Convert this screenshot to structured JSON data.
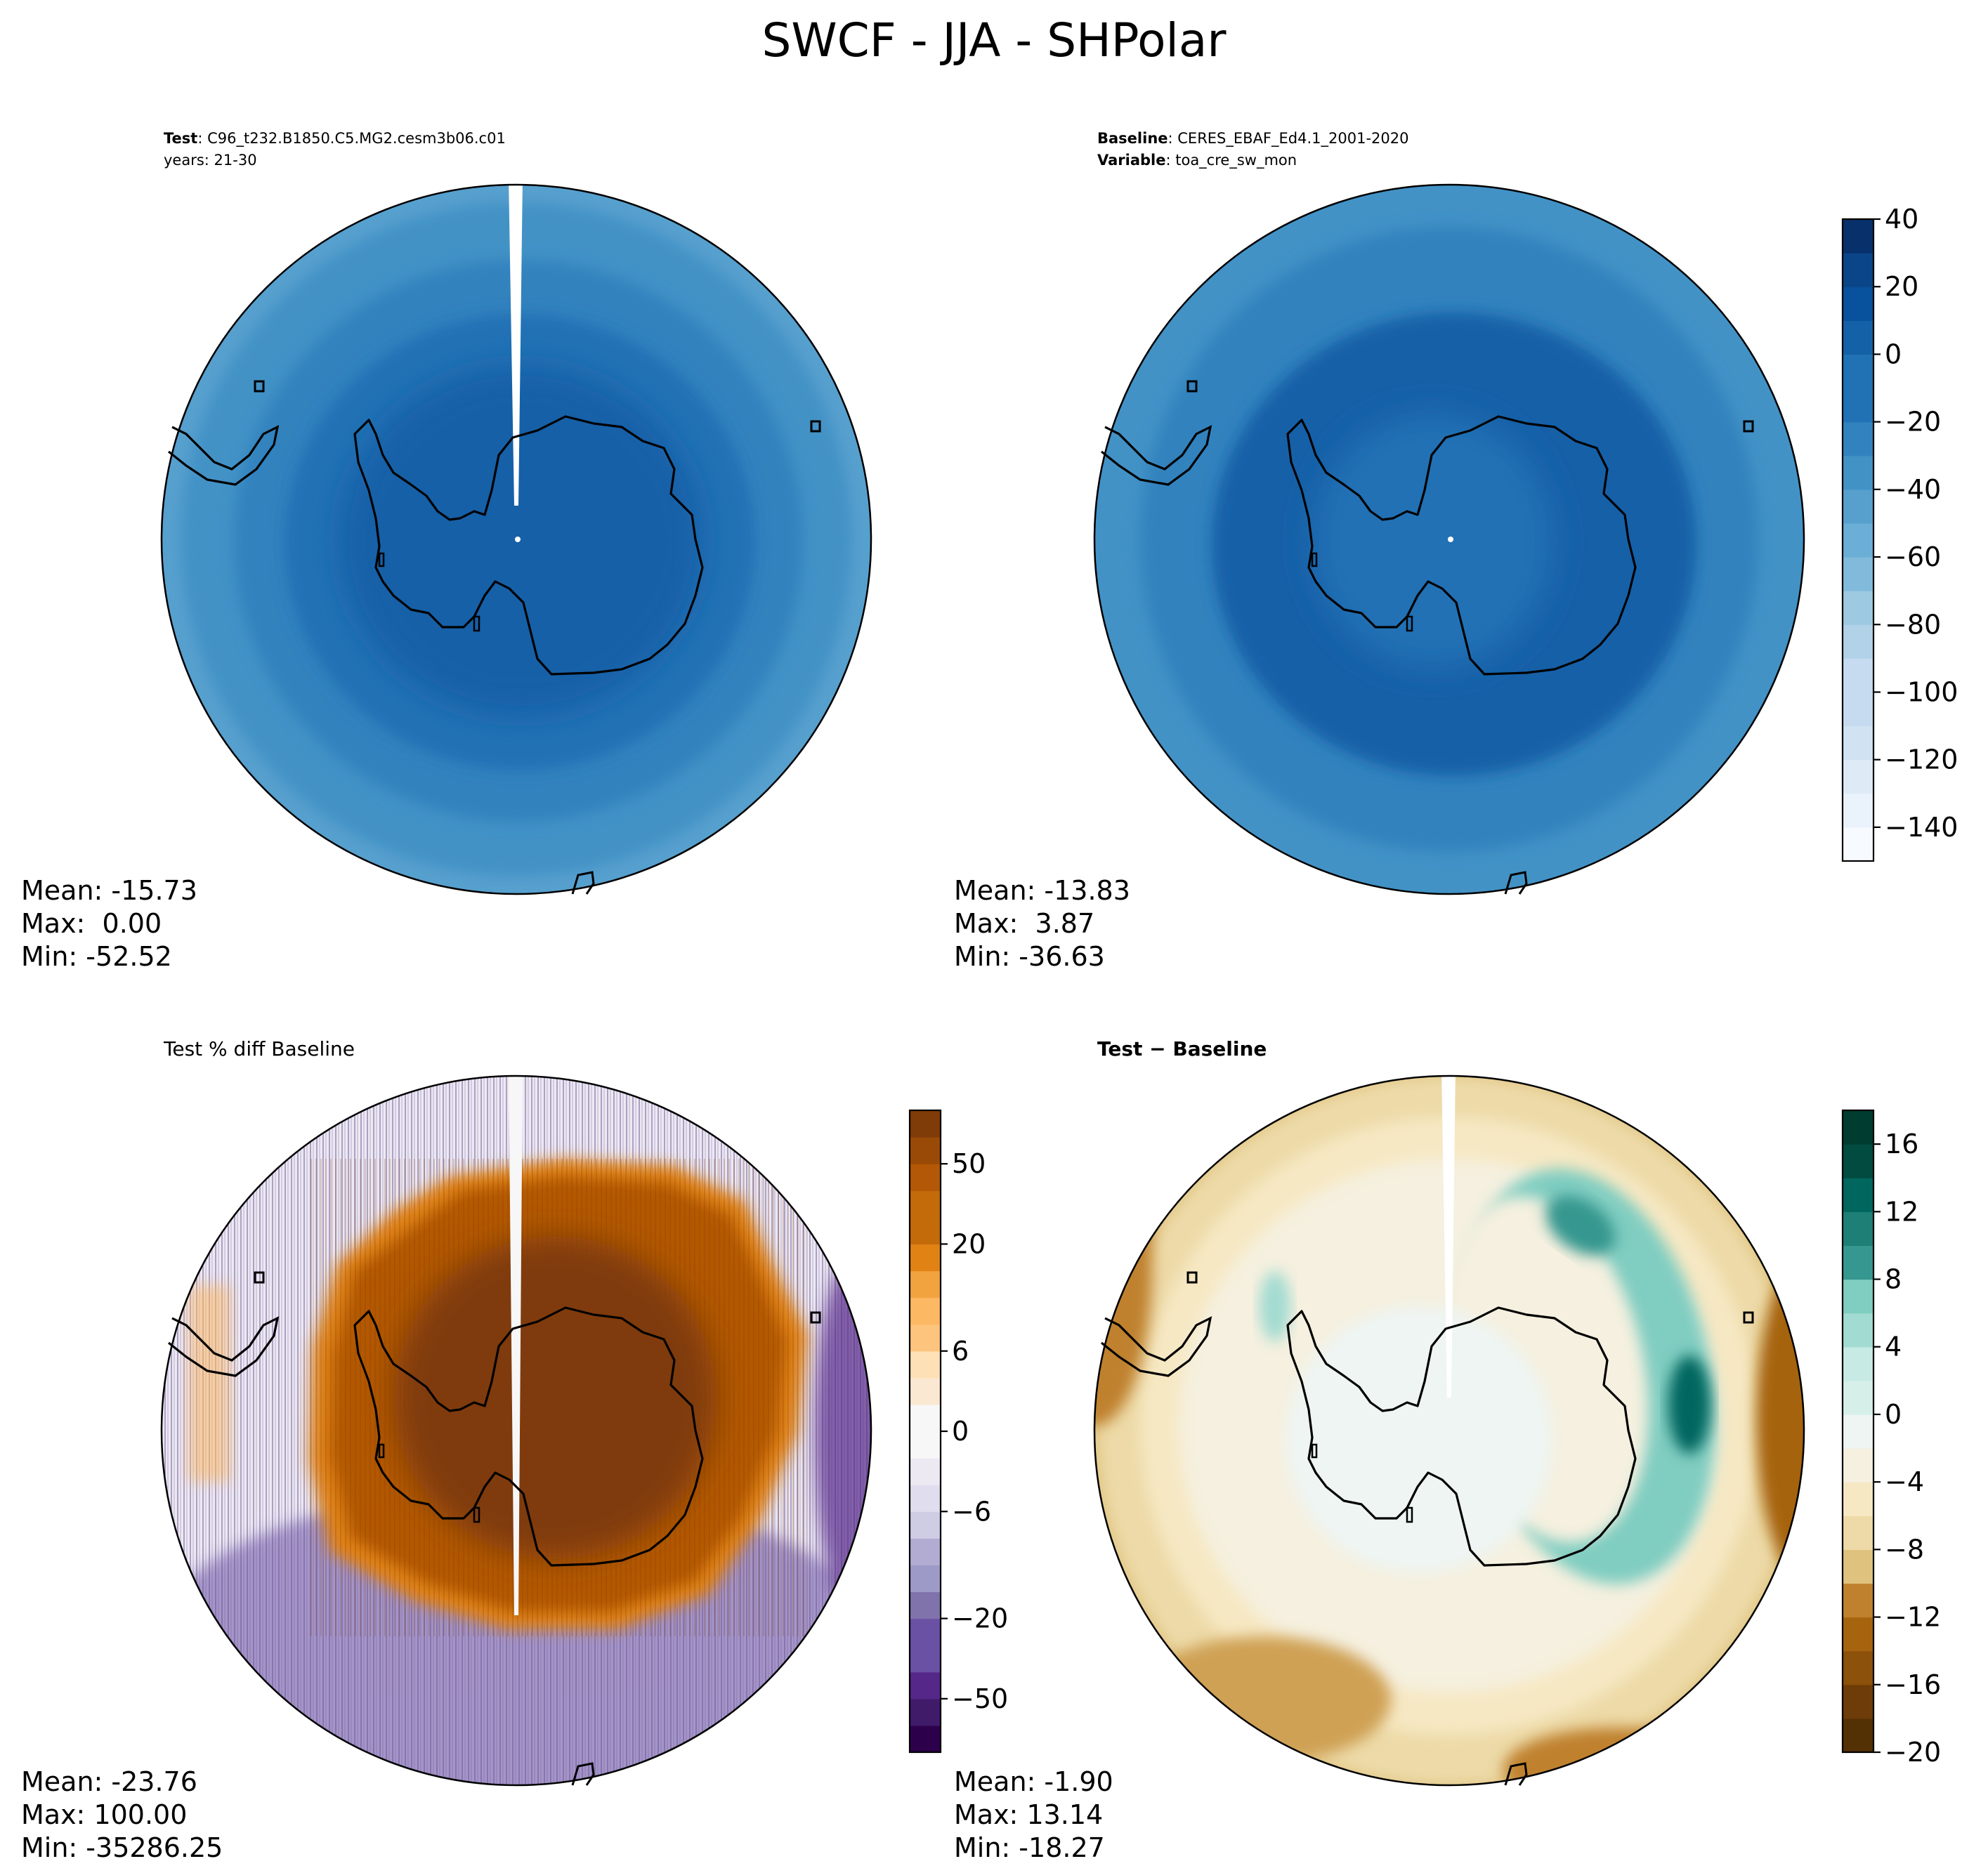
{
  "figure_title": "SWCF - JJA - SHPolar",
  "colors": {
    "blues": [
      "#f7fbff",
      "#eaf3fb",
      "#deebf7",
      "#d1e3f3",
      "#c6dbef",
      "#b2d2e8",
      "#9ecae1",
      "#82badb",
      "#6baed6",
      "#57a0ce",
      "#4292c6",
      "#3282be",
      "#2171b5",
      "#1461a8",
      "#08519c",
      "#0a4588",
      "#08306b"
    ],
    "puor": [
      "#2d004b",
      "#3f1b6a",
      "#542788",
      "#6a51a3",
      "#8073ac",
      "#9e9ac8",
      "#b2abd2",
      "#cfcde4",
      "#e0ddef",
      "#ece9f3",
      "#f7f7f7",
      "#fbe8d3",
      "#fee0b6",
      "#fdc47e",
      "#fdb863",
      "#f1a340",
      "#e08214",
      "#c36b0b",
      "#b35806",
      "#9a4a07",
      "#7f3b08"
    ],
    "brbg": [
      "#543005",
      "#6d3c08",
      "#8c510a",
      "#a6640f",
      "#bf812d",
      "#cfa155",
      "#dfc27d",
      "#eddaa8",
      "#f6e8c3",
      "#f5f0df",
      "#eef5f3",
      "#d6efe9",
      "#c7eae5",
      "#a2dbd1",
      "#80cdc1",
      "#5ab4ac",
      "#35978f",
      "#1d7f76",
      "#01665e",
      "#014b40",
      "#003c30"
    ]
  },
  "panels": [
    {
      "id": "test",
      "title_lines": [
        {
          "bold": "Test",
          "rest": ": C96_t232.B1850.C5.MG2.cesm3b06.c01"
        },
        {
          "bold": "",
          "rest": "years: 21-30"
        }
      ],
      "stats": {
        "mean": "Mean: -15.73",
        "max": "Max:  0.00",
        "min": "Min: -52.52"
      }
    },
    {
      "id": "baseline",
      "title_lines": [
        {
          "bold": "Baseline",
          "rest": ": CERES_EBAF_Ed4.1_2001-2020"
        },
        {
          "bold": "Variable",
          "rest": ": toa_cre_sw_mon"
        }
      ],
      "stats": {
        "mean": "Mean: -13.83",
        "max": "Max:  3.87",
        "min": "Min: -36.63"
      }
    },
    {
      "id": "pctdiff",
      "title_lines": [
        {
          "bold": "",
          "rest": "Test % diff Baseline"
        }
      ],
      "stats": {
        "mean": "Mean: -23.76",
        "max": "Max: 100.00",
        "min": "Min: -35286.25"
      }
    },
    {
      "id": "diff",
      "title_lines": [
        {
          "bold": "Test − Baseline",
          "rest": ""
        }
      ],
      "stats": {
        "mean": "Mean: -1.90",
        "max": "Max: 13.14",
        "min": "Min: -18.27"
      }
    }
  ],
  "chart_data": [
    {
      "type": "heatmap",
      "name": "test",
      "colorbar": "shared_blues",
      "field_rings": [
        {
          "colat_deg": 0,
          "value": -8
        },
        {
          "colat_deg": 20,
          "value": -12
        },
        {
          "colat_deg": 28,
          "value": -18
        },
        {
          "colat_deg": 33,
          "value": -28
        },
        {
          "colat_deg": 38,
          "value": -36
        }
      ],
      "stats": {
        "mean": -15.73,
        "max": 0.0,
        "min": -52.52
      }
    },
    {
      "type": "heatmap",
      "name": "baseline",
      "colorbar": "shared_blues",
      "field_rings": [
        {
          "colat_deg": 0,
          "value": -14
        },
        {
          "colat_deg": 14,
          "value": -6
        },
        {
          "colat_deg": 24,
          "value": -12
        },
        {
          "colat_deg": 30,
          "value": -20
        }
      ],
      "stats": {
        "mean": -13.83,
        "max": 3.87,
        "min": -36.63
      }
    },
    {
      "type": "heatmap",
      "name": "pctdiff",
      "colorbar_levels": [
        -100,
        -75,
        -50,
        -40,
        -30,
        -20,
        -15,
        -10,
        -8,
        -6,
        -4,
        -2,
        0,
        2,
        4,
        6,
        8,
        10,
        15,
        20,
        30,
        40,
        50,
        75,
        100
      ],
      "colorbar_tick_labels": [
        "−50",
        "−20",
        "−6",
        "0",
        "6",
        "20",
        "50"
      ],
      "colorbar_tick_values": [
        -50,
        -20,
        -6,
        0,
        6,
        20,
        50
      ],
      "stats": {
        "mean": -23.76,
        "max": 100.0,
        "min": -35286.25
      }
    },
    {
      "type": "heatmap",
      "name": "diff",
      "colorbar_levels": [
        -20,
        -18,
        -16,
        -14,
        -12,
        -10,
        -8,
        -6,
        -4,
        -2,
        0,
        2,
        4,
        6,
        8,
        10,
        12,
        14,
        16,
        18
      ],
      "colorbar_tick_labels": [
        "−20",
        "−16",
        "−12",
        "−8",
        "−4",
        "0",
        "4",
        "8",
        "12",
        "16"
      ],
      "colorbar_tick_values": [
        -20,
        -16,
        -12,
        -8,
        -4,
        0,
        4,
        8,
        12,
        16
      ],
      "stats": {
        "mean": -1.9,
        "max": 13.14,
        "min": -18.27
      }
    },
    {
      "type": "heatmap",
      "name": "shared_blues",
      "colorbar_levels": [
        -150,
        -140,
        -130,
        -120,
        -110,
        -100,
        -90,
        -80,
        -70,
        -60,
        -50,
        -40,
        -30,
        -20,
        -10,
        0,
        10,
        20,
        30,
        40
      ],
      "colorbar_tick_labels": [
        "40",
        "20",
        "0",
        "−20",
        "−40",
        "−60",
        "−80",
        "−100",
        "−120",
        "−140"
      ],
      "colorbar_tick_values": [
        40,
        20,
        0,
        -20,
        -40,
        -60,
        -80,
        -100,
        -120,
        -140
      ]
    }
  ]
}
